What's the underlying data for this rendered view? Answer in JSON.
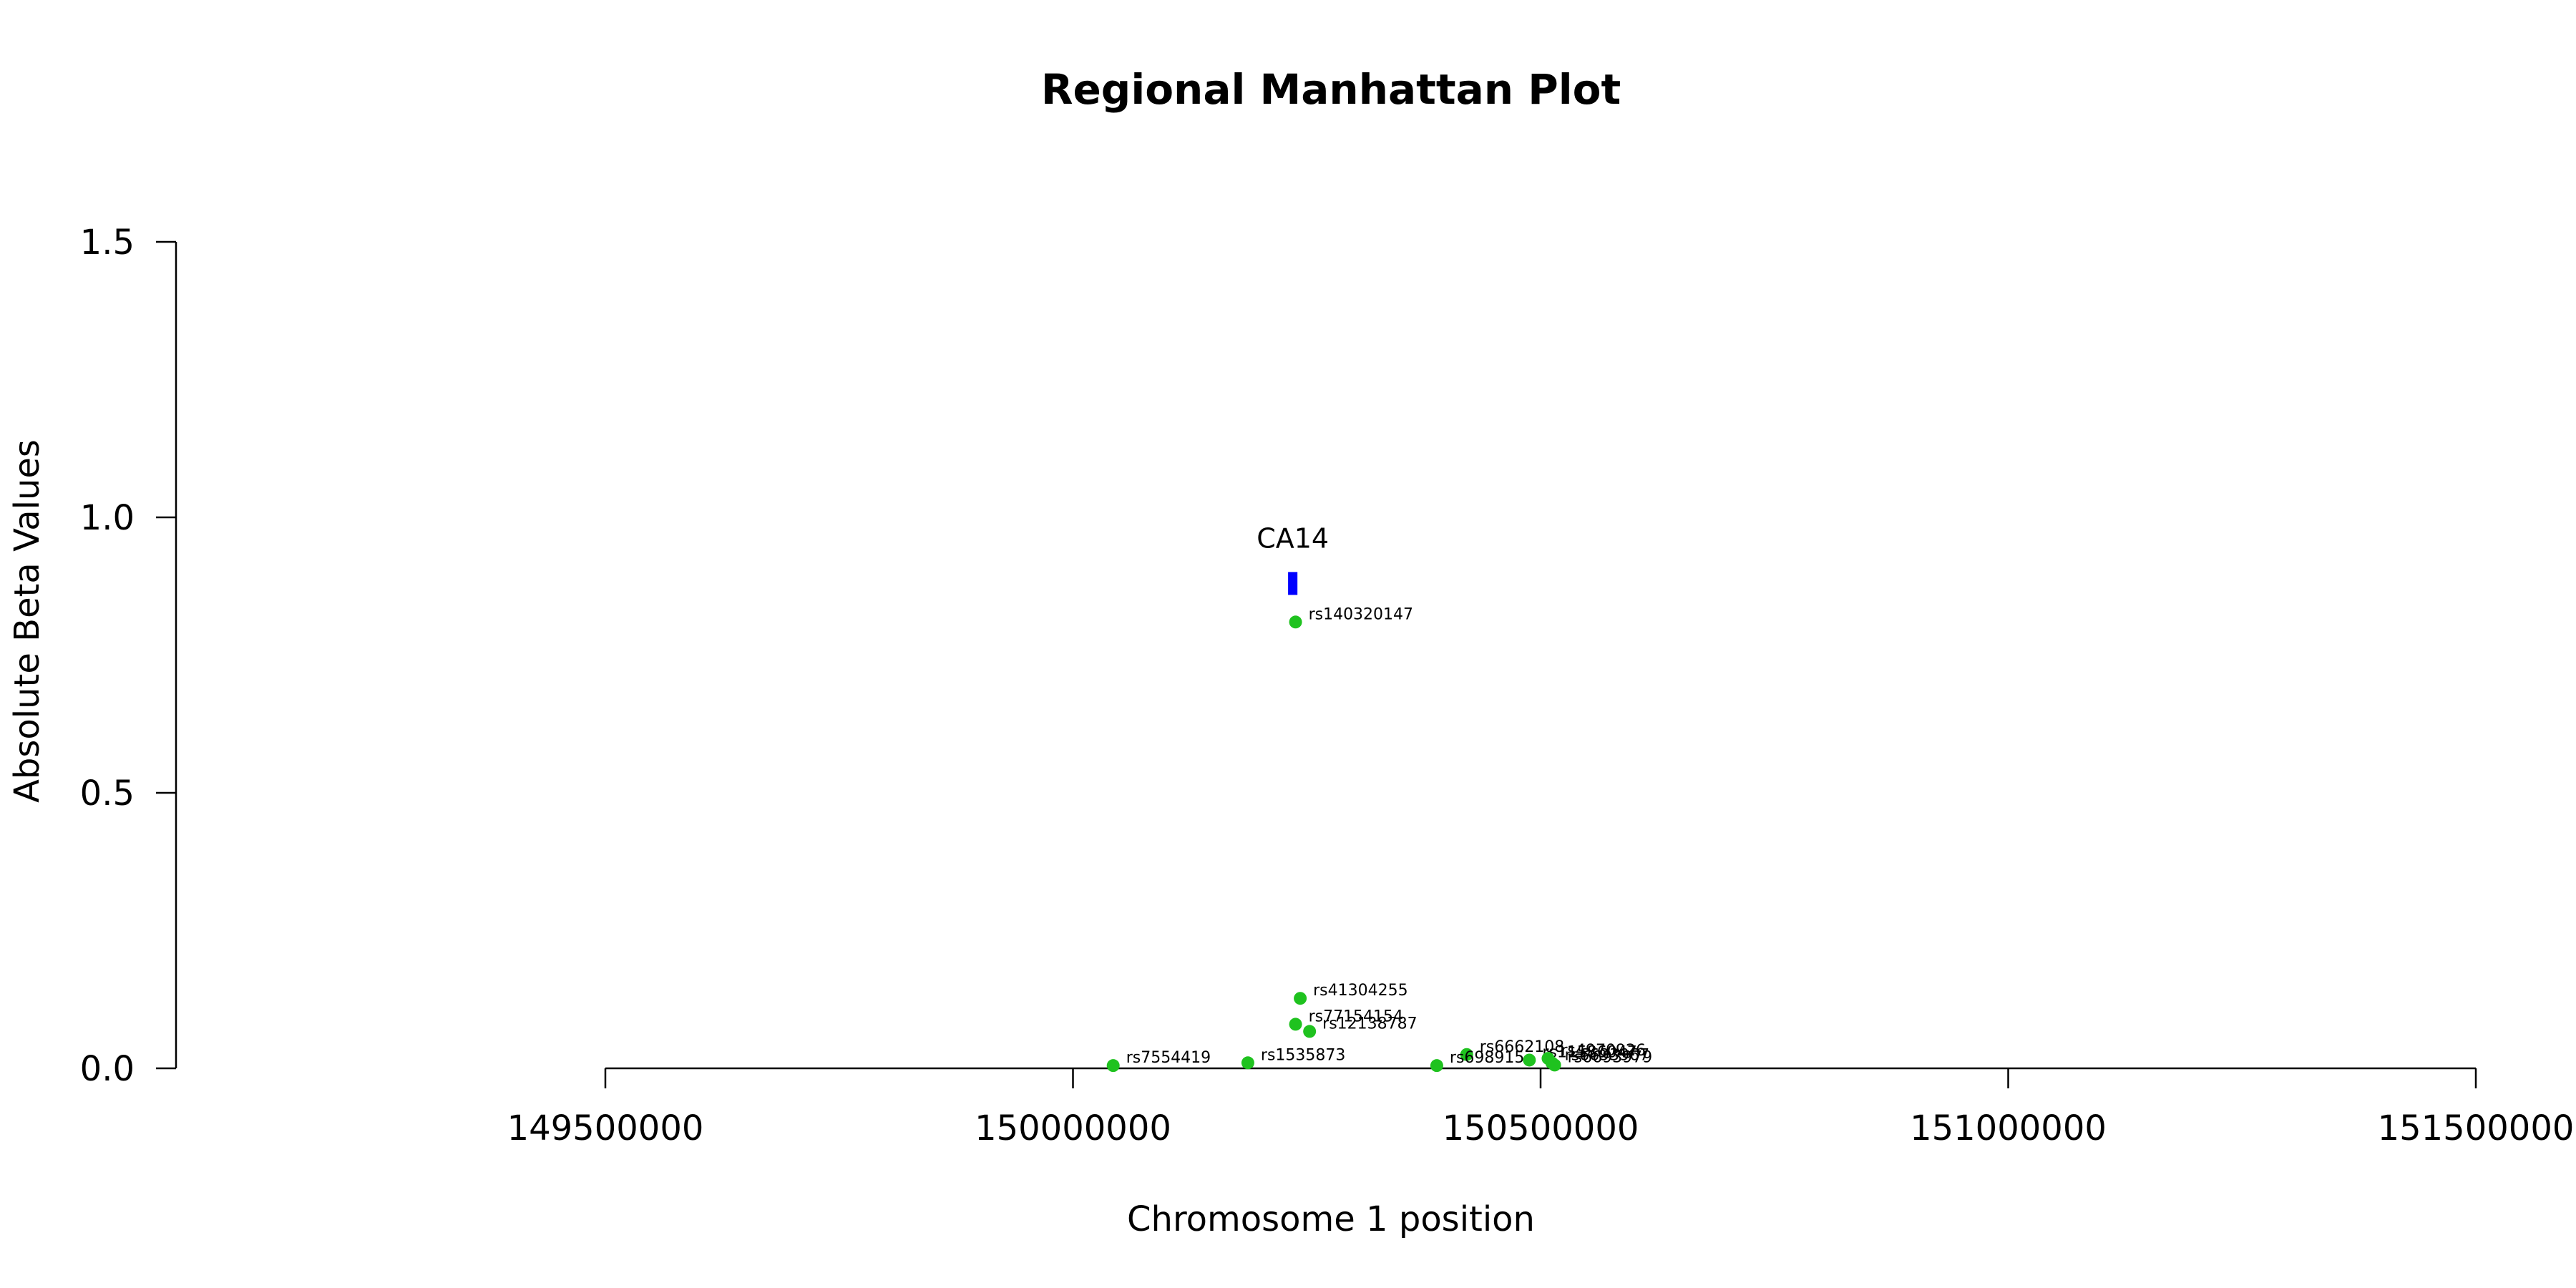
{
  "chart_data": {
    "type": "scatter",
    "title": "Regional Manhattan Plot",
    "xlabel": "Chromosome 1 position",
    "ylabel": "Absolute Beta Values",
    "xlim": [
      149500000,
      151500000
    ],
    "ylim": [
      0,
      1.5
    ],
    "x_ticks": [
      "149500000",
      "150000000",
      "150500000",
      "151000000",
      "151500000"
    ],
    "y_ticks": [
      "0.0",
      "0.5",
      "1.0",
      "1.5"
    ],
    "grid": false,
    "point_color": "#1fc21f",
    "gene_color": "#0000ff",
    "points": [
      {
        "label": "rs140320147",
        "x": 150238000,
        "y": 0.81
      },
      {
        "label": "rs41304255",
        "x": 150243000,
        "y": 0.127
      },
      {
        "label": "rs77154154",
        "x": 150238000,
        "y": 0.08
      },
      {
        "label": "rs12138787",
        "x": 150253000,
        "y": 0.067
      },
      {
        "label": "rs7554419",
        "x": 150043000,
        "y": 0.005
      },
      {
        "label": "rs1535873",
        "x": 150187000,
        "y": 0.01
      },
      {
        "label": "rs6662108",
        "x": 150421000,
        "y": 0.025
      },
      {
        "label": "rs698915",
        "x": 150389000,
        "y": 0.005
      },
      {
        "label": "rs11586047",
        "x": 150488000,
        "y": 0.015
      },
      {
        "label": "rs4970926",
        "x": 150508000,
        "y": 0.018
      },
      {
        "label": "rs6693967",
        "x": 150512000,
        "y": 0.01
      },
      {
        "label": "rs6693979",
        "x": 150515000,
        "y": 0.006
      }
    ],
    "genes": [
      {
        "name": "CA14",
        "start": 150230000,
        "end": 150240000,
        "y": 0.88
      }
    ]
  }
}
